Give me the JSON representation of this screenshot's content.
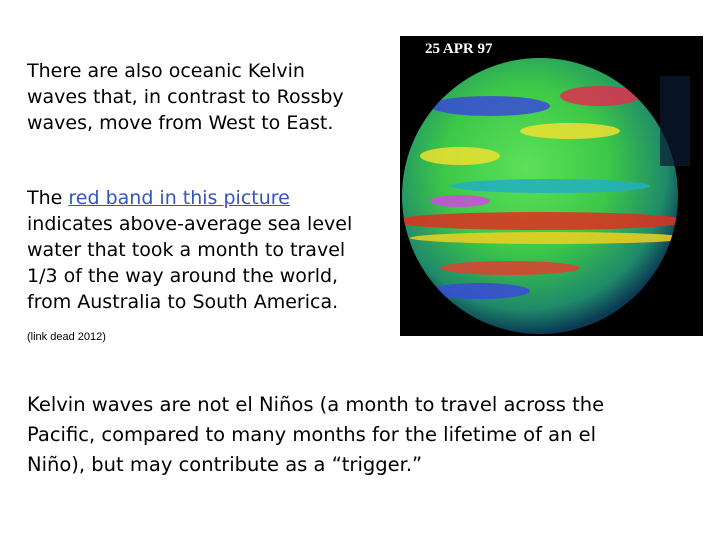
{
  "slide": {
    "paragraph_1": {
      "lines": [
        "There are also oceanic Kelvin",
        "waves that, in contrast to Rossby",
        "waves, move from West to East."
      ]
    },
    "paragraph_2": {
      "lead": "The",
      "link": "red band in this picture",
      "lines": [
        "indicates above-average sea level",
        "water that took a month to travel",
        "1/3 of the way around the world,",
        "from Australia to South America."
      ]
    },
    "note": "(link dead 2012)",
    "image_label": "25 APR 97",
    "paragraph_3": {
      "lines": [
        "Kelvin waves are not el Niños (a month to travel across the",
        "Pacific, compared to many months for the lifetime of an el",
        "Niño), but may contribute as a “trigger.”"
      ]
    }
  }
}
